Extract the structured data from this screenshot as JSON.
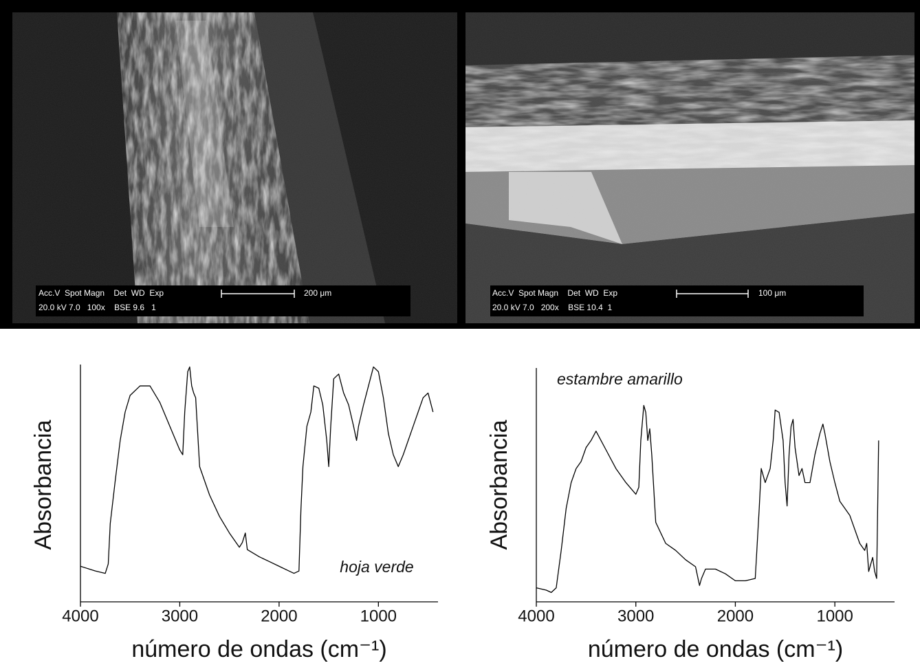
{
  "micrographs": [
    {
      "info_line_1": "Acc.V  Spot Magn    Det  WD  Exp",
      "info_line_2": "20.0 kV 7.0   100x    BSE 9.6   1",
      "scale": "200 μm"
    },
    {
      "info_line_1": "Acc.V  Spot Magn    Det  WD  Exp",
      "info_line_2": "20.0 kV 7.0   200x    BSE 10.4  1",
      "scale": "100 μm"
    }
  ],
  "chart_data": [
    {
      "type": "line",
      "ylabel": "Absorbancia",
      "xlabel": "número de ondas (cm⁻¹)",
      "annotation": "hoja verde",
      "color": "#000000",
      "xlim": [
        4000,
        400
      ],
      "ylim": [
        0,
        1
      ],
      "xticks": [
        4000,
        3000,
        2000,
        1000
      ],
      "x": [
        4000,
        3850,
        3750,
        3720,
        3700,
        3650,
        3600,
        3550,
        3500,
        3400,
        3300,
        3200,
        3100,
        3000,
        2970,
        2950,
        2920,
        2900,
        2880,
        2860,
        2840,
        2800,
        2700,
        2600,
        2500,
        2400,
        2370,
        2340,
        2320,
        2200,
        2100,
        2000,
        1900,
        1850,
        1800,
        1780,
        1760,
        1720,
        1680,
        1650,
        1600,
        1560,
        1520,
        1500,
        1480,
        1450,
        1400,
        1350,
        1300,
        1250,
        1220,
        1200,
        1150,
        1100,
        1050,
        1000,
        950,
        900,
        850,
        800,
        750,
        700,
        650,
        600,
        550,
        500,
        450
      ],
      "values": [
        0.15,
        0.13,
        0.12,
        0.16,
        0.33,
        0.51,
        0.68,
        0.8,
        0.87,
        0.91,
        0.91,
        0.84,
        0.74,
        0.64,
        0.62,
        0.8,
        0.97,
        0.99,
        0.91,
        0.88,
        0.86,
        0.57,
        0.45,
        0.36,
        0.29,
        0.23,
        0.25,
        0.29,
        0.22,
        0.19,
        0.17,
        0.15,
        0.13,
        0.12,
        0.13,
        0.39,
        0.57,
        0.74,
        0.8,
        0.91,
        0.9,
        0.83,
        0.68,
        0.57,
        0.74,
        0.94,
        0.96,
        0.88,
        0.83,
        0.74,
        0.68,
        0.74,
        0.83,
        0.91,
        0.99,
        0.97,
        0.86,
        0.71,
        0.62,
        0.57,
        0.62,
        0.68,
        0.74,
        0.8,
        0.86,
        0.88,
        0.8
      ]
    },
    {
      "type": "line",
      "ylabel": "Absorbancia",
      "xlabel": "número de ondas (cm⁻¹)",
      "annotation": "estambre amarillo",
      "color": "#000000",
      "xlim": [
        4000,
        400
      ],
      "ylim": [
        0,
        1
      ],
      "xticks": [
        4000,
        3000,
        2000,
        1000
      ],
      "x": [
        4000,
        3900,
        3850,
        3800,
        3750,
        3700,
        3650,
        3600,
        3550,
        3500,
        3450,
        3400,
        3350,
        3300,
        3200,
        3100,
        3000,
        2970,
        2950,
        2920,
        2900,
        2880,
        2860,
        2840,
        2800,
        2700,
        2600,
        2500,
        2400,
        2360,
        2340,
        2300,
        2200,
        2100,
        2000,
        1900,
        1800,
        1760,
        1740,
        1700,
        1650,
        1620,
        1600,
        1560,
        1520,
        1500,
        1480,
        1460,
        1440,
        1420,
        1400,
        1360,
        1330,
        1300,
        1250,
        1200,
        1150,
        1120,
        1100,
        1050,
        1000,
        950,
        900,
        850,
        800,
        750,
        700,
        680,
        660,
        620,
        600,
        580,
        560
      ],
      "values": [
        0.06,
        0.05,
        0.04,
        0.06,
        0.22,
        0.4,
        0.51,
        0.57,
        0.6,
        0.66,
        0.69,
        0.73,
        0.69,
        0.65,
        0.57,
        0.51,
        0.46,
        0.49,
        0.69,
        0.84,
        0.81,
        0.69,
        0.74,
        0.63,
        0.34,
        0.25,
        0.22,
        0.18,
        0.15,
        0.07,
        0.1,
        0.14,
        0.14,
        0.12,
        0.09,
        0.09,
        0.1,
        0.4,
        0.57,
        0.51,
        0.57,
        0.69,
        0.82,
        0.81,
        0.69,
        0.51,
        0.41,
        0.63,
        0.75,
        0.78,
        0.66,
        0.54,
        0.57,
        0.51,
        0.51,
        0.63,
        0.72,
        0.76,
        0.72,
        0.6,
        0.51,
        0.43,
        0.4,
        0.37,
        0.31,
        0.25,
        0.22,
        0.25,
        0.13,
        0.19,
        0.13,
        0.1,
        0.69
      ]
    }
  ]
}
